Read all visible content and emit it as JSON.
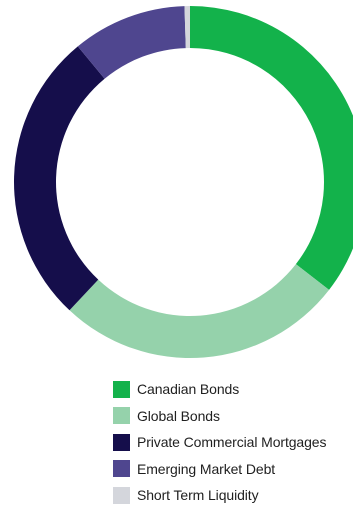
{
  "chart_data": {
    "type": "pie",
    "donut": true,
    "title": "",
    "unit": "%",
    "legend_position": "bottom",
    "series": [
      {
        "name": "Canadian Bonds",
        "value": 35.5,
        "color": "#13b24b"
      },
      {
        "name": "Global Bonds",
        "value": 26.5,
        "color": "#95d2ab"
      },
      {
        "name": "Private Commercial Mortgages",
        "value": 27.0,
        "color": "#150e4b"
      },
      {
        "name": "Emerging Market Debt",
        "value": 10.5,
        "color": "#4f468f"
      },
      {
        "name": "Short Term Liquidity",
        "value": 0.5,
        "color": "#d4d6dc"
      }
    ]
  }
}
